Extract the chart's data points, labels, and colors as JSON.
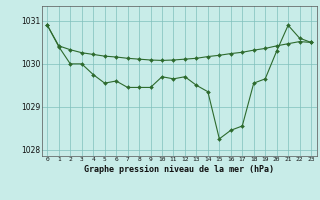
{
  "title": "Graphe pression niveau de la mer (hPa)",
  "background_color": "#c8ece8",
  "plot_bg_color": "#c8ece8",
  "grid_color": "#80c0bc",
  "line_color": "#2d6a2d",
  "marker_color": "#2d6a2d",
  "hours": [
    0,
    1,
    2,
    3,
    4,
    5,
    6,
    7,
    8,
    9,
    10,
    11,
    12,
    13,
    14,
    15,
    16,
    17,
    18,
    19,
    20,
    21,
    22,
    23
  ],
  "series_main": [
    1030.9,
    1030.4,
    1030.0,
    1030.0,
    1029.75,
    1029.55,
    1029.6,
    1029.45,
    1029.45,
    1029.45,
    1029.7,
    1029.65,
    1029.7,
    1029.5,
    1029.35,
    1028.25,
    1028.45,
    1028.55,
    1029.55,
    1029.65,
    1030.3,
    1030.9,
    1030.6,
    1030.5
  ],
  "series_upper": [
    1030.9,
    1030.42,
    1030.33,
    1030.26,
    1030.22,
    1030.18,
    1030.16,
    1030.13,
    1030.11,
    1030.09,
    1030.08,
    1030.09,
    1030.11,
    1030.13,
    1030.17,
    1030.2,
    1030.24,
    1030.27,
    1030.32,
    1030.36,
    1030.42,
    1030.47,
    1030.52,
    1030.5
  ],
  "ylim": [
    1027.85,
    1031.35
  ],
  "yticks": [
    1028,
    1029,
    1030,
    1031
  ],
  "xlim": [
    -0.5,
    23.5
  ],
  "figsize": [
    3.2,
    2.0
  ],
  "dpi": 100
}
